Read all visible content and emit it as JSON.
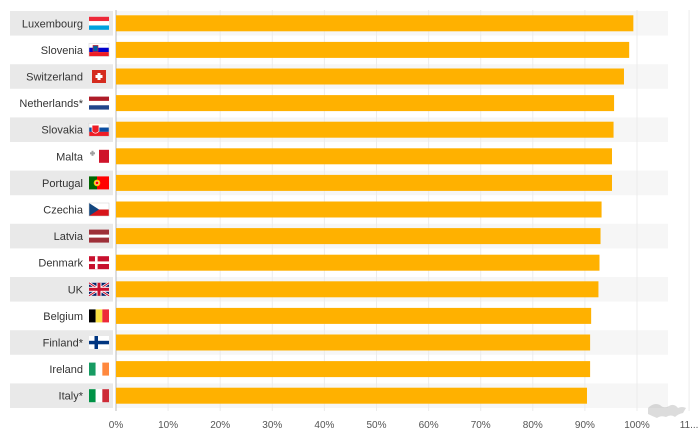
{
  "chart_data": {
    "type": "bar",
    "orientation": "horizontal",
    "categories": [
      "Luxembourg",
      "Slovenia",
      "Switzerland",
      "Netherlands*",
      "Slovakia",
      "Malta",
      "Portugal",
      "Czechia",
      "Latvia",
      "Denmark",
      "UK",
      "Belgium",
      "Finland*",
      "Ireland",
      "Italy*"
    ],
    "values": [
      99.3,
      98.5,
      97.5,
      95.6,
      95.5,
      95.2,
      95.2,
      93.2,
      93.0,
      92.8,
      92.6,
      91.2,
      91.0,
      91.0,
      90.4
    ],
    "bar_color": "#FFB100",
    "x_ticks": [
      "0%",
      "10%",
      "20%",
      "30%",
      "40%",
      "50%",
      "60%",
      "70%",
      "80%",
      "90%",
      "100%",
      "11..."
    ],
    "xlim": [
      0,
      110
    ],
    "grid": true,
    "flag_icons": [
      "luxembourg-flag-icon",
      "slovenia-flag-icon",
      "switzerland-flag-icon",
      "netherlands-flag-icon",
      "slovakia-flag-icon",
      "malta-flag-icon",
      "portugal-flag-icon",
      "czechia-flag-icon",
      "latvia-flag-icon",
      "denmark-flag-icon",
      "uk-flag-icon",
      "belgium-flag-icon",
      "finland-flag-icon",
      "ireland-flag-icon",
      "italy-flag-icon"
    ],
    "watermark_icon": "world-map-icon"
  }
}
